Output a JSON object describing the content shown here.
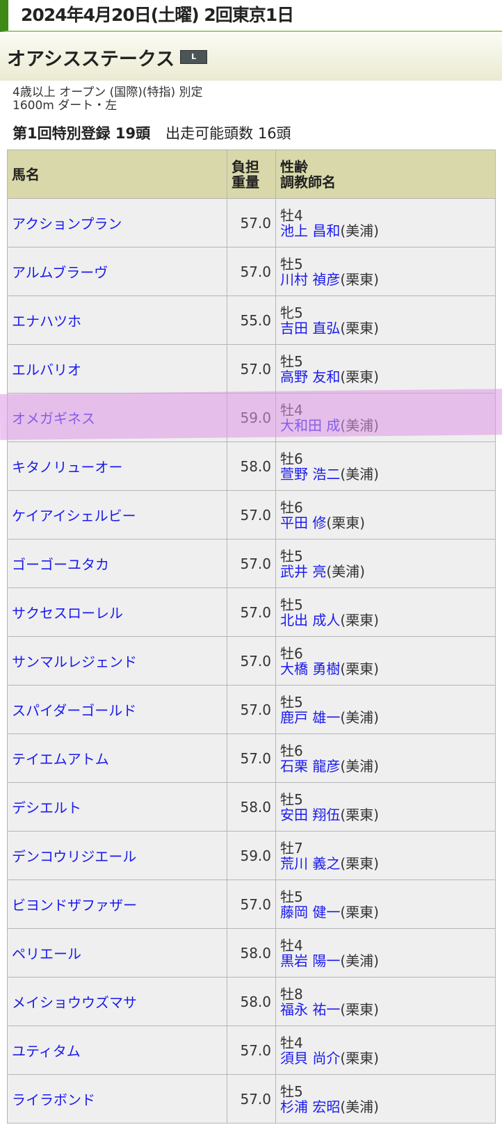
{
  "header": {
    "date": "2024年4月20日(土曜) 2回東京1日"
  },
  "race": {
    "name": "オアシスステークス",
    "grade_badge": "L",
    "conditions": "4歳以上 オープン (国際)(特指) 別定",
    "course": "1600m ダート・左"
  },
  "registration": {
    "title": "第1回特別登録 19頭",
    "eligible": "出走可能頭数 16頭"
  },
  "table": {
    "headers": {
      "horse": "馬名",
      "weight_1": "負担",
      "weight_2": "重量",
      "sexage": "性齢",
      "trainer": "調教師名"
    },
    "rows": [
      {
        "horse": "アクションプラン",
        "weight": "57.0",
        "sexage": "牡4",
        "trainer": "池上 昌和",
        "stable": "(美浦)"
      },
      {
        "horse": "アルムブラーヴ",
        "weight": "57.0",
        "sexage": "牡5",
        "trainer": "川村 禎彦",
        "stable": "(栗東)"
      },
      {
        "horse": "エナハツホ",
        "weight": "55.0",
        "sexage": "牝5",
        "trainer": "吉田 直弘",
        "stable": "(栗東)"
      },
      {
        "horse": "エルバリオ",
        "weight": "57.0",
        "sexage": "牡5",
        "trainer": "高野 友和",
        "stable": "(栗東)"
      },
      {
        "horse": "オメガギネス",
        "weight": "59.0",
        "sexage": "牡4",
        "trainer": "大和田 成",
        "stable": "(美浦)"
      },
      {
        "horse": "キタノリューオー",
        "weight": "58.0",
        "sexage": "牡6",
        "trainer": "萱野 浩二",
        "stable": "(美浦)"
      },
      {
        "horse": "ケイアイシェルビー",
        "weight": "57.0",
        "sexage": "牡6",
        "trainer": "平田 修",
        "stable": "(栗東)"
      },
      {
        "horse": "ゴーゴーユタカ",
        "weight": "57.0",
        "sexage": "牡5",
        "trainer": "武井 亮",
        "stable": "(美浦)"
      },
      {
        "horse": "サクセスローレル",
        "weight": "57.0",
        "sexage": "牡5",
        "trainer": "北出 成人",
        "stable": "(栗東)"
      },
      {
        "horse": "サンマルレジェンド",
        "weight": "57.0",
        "sexage": "牡6",
        "trainer": "大橋 勇樹",
        "stable": "(栗東)"
      },
      {
        "horse": "スパイダーゴールド",
        "weight": "57.0",
        "sexage": "牡5",
        "trainer": "鹿戸 雄一",
        "stable": "(美浦)"
      },
      {
        "horse": "テイエムアトム",
        "weight": "57.0",
        "sexage": "牡6",
        "trainer": "石栗 龍彦",
        "stable": "(美浦)"
      },
      {
        "horse": "デシエルト",
        "weight": "58.0",
        "sexage": "牡5",
        "trainer": "安田 翔伍",
        "stable": "(栗東)"
      },
      {
        "horse": "デンコウリジエール",
        "weight": "59.0",
        "sexage": "牡7",
        "trainer": "荒川 義之",
        "stable": "(栗東)"
      },
      {
        "horse": "ビヨンドザファザー",
        "weight": "57.0",
        "sexage": "牡5",
        "trainer": "藤岡 健一",
        "stable": "(栗東)"
      },
      {
        "horse": "ペリエール",
        "weight": "58.0",
        "sexage": "牡4",
        "trainer": "黒岩 陽一",
        "stable": "(美浦)"
      },
      {
        "horse": "メイショウウズマサ",
        "weight": "58.0",
        "sexage": "牡8",
        "trainer": "福永 祐一",
        "stable": "(栗東)"
      },
      {
        "horse": "ユティタム",
        "weight": "57.0",
        "sexage": "牡4",
        "trainer": "須貝 尚介",
        "stable": "(栗東)"
      },
      {
        "horse": "ライラボンド",
        "weight": "57.0",
        "sexage": "牡5",
        "trainer": "杉浦 宏昭",
        "stable": "(美浦)"
      }
    ]
  },
  "colors": {
    "accent": "#3f8a16",
    "header_bg": "#d8d8aa",
    "link": "#1a1aee",
    "highlight": "#e8b4f0"
  }
}
